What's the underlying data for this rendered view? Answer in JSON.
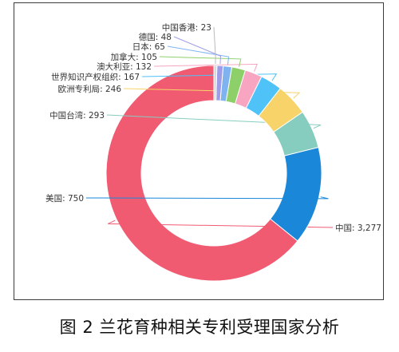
{
  "caption": "图 2 兰花育种相关专利受理国家分析",
  "chart_data": {
    "type": "pie",
    "style": "donut",
    "slices": [
      {
        "label": "中国",
        "value": 3277,
        "value_text": "3,277",
        "color": "#f05b72"
      },
      {
        "label": "美国",
        "value": 750,
        "value_text": "750",
        "color": "#1a87d8"
      },
      {
        "label": "中国台湾",
        "value": 293,
        "value_text": "293",
        "color": "#86cdbf"
      },
      {
        "label": "欧洲专利局",
        "value": 246,
        "value_text": "246",
        "color": "#f7d36a"
      },
      {
        "label": "世界知识产权组织",
        "value": 167,
        "value_text": "167",
        "color": "#4fc2f7"
      },
      {
        "label": "澳大利亚",
        "value": 132,
        "value_text": "132",
        "color": "#f8a5c2"
      },
      {
        "label": "加拿大",
        "value": 105,
        "value_text": "105",
        "color": "#8dd06a"
      },
      {
        "label": "日本",
        "value": 65,
        "value_text": "65",
        "color": "#7fb3f0"
      },
      {
        "label": "德国",
        "value": 48,
        "value_text": "48",
        "color": "#9e9ee8"
      },
      {
        "label": "中国香港",
        "value": 23,
        "value_text": "23",
        "color": "#d9d9d9"
      }
    ]
  }
}
